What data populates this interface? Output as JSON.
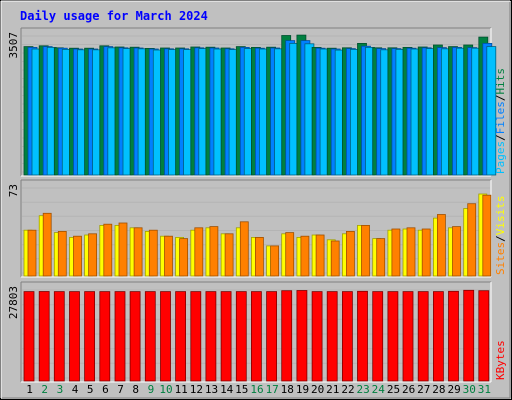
{
  "chart_data": [
    {
      "type": "bar",
      "title": "Daily usage for March 2024",
      "categories": [
        "1",
        "2",
        "3",
        "4",
        "5",
        "6",
        "7",
        "8",
        "9",
        "10",
        "11",
        "12",
        "13",
        "14",
        "15",
        "16",
        "17",
        "18",
        "19",
        "20",
        "21",
        "22",
        "23",
        "24",
        "25",
        "26",
        "27",
        "28",
        "29",
        "30",
        "31"
      ],
      "weekend_days": [
        "2",
        "3",
        "9",
        "10",
        "16",
        "17",
        "23",
        "24",
        "30",
        "31"
      ],
      "ymax_label": "3507",
      "ymax": 3507,
      "legend": [
        "Hits",
        "Files",
        "Pages"
      ],
      "series": [
        {
          "name": "Hits",
          "color": "#008040",
          "values": [
            3240,
            3260,
            3210,
            3200,
            3200,
            3260,
            3230,
            3225,
            3195,
            3205,
            3205,
            3230,
            3225,
            3205,
            3240,
            3220,
            3225,
            3520,
            3530,
            3220,
            3200,
            3210,
            3320,
            3210,
            3210,
            3220,
            3230,
            3280,
            3240,
            3280,
            3480
          ]
        },
        {
          "name": "Files",
          "color": "#0080ff",
          "values": [
            3220,
            3240,
            3200,
            3180,
            3180,
            3240,
            3210,
            3205,
            3180,
            3185,
            3185,
            3210,
            3205,
            3185,
            3220,
            3200,
            3205,
            3390,
            3390,
            3200,
            3180,
            3190,
            3250,
            3190,
            3190,
            3200,
            3210,
            3215,
            3220,
            3215,
            3320
          ]
        },
        {
          "name": "Pages",
          "color": "#00c0ff",
          "values": [
            3180,
            3220,
            3170,
            3160,
            3160,
            3210,
            3190,
            3185,
            3155,
            3165,
            3165,
            3190,
            3180,
            3165,
            3190,
            3180,
            3185,
            3320,
            3310,
            3180,
            3150,
            3170,
            3220,
            3160,
            3170,
            3180,
            3190,
            3185,
            3200,
            3200,
            3240
          ]
        }
      ]
    },
    {
      "type": "bar",
      "ymax_label": "73",
      "ymax": 73,
      "legend": [
        "Visits",
        "Sites"
      ],
      "series": [
        {
          "name": "Visits",
          "color": "#ffff00",
          "values": [
            38,
            50,
            36,
            32,
            34,
            42,
            42,
            40,
            37,
            33,
            32,
            38,
            40,
            35,
            40,
            32,
            25,
            35,
            32,
            34,
            30,
            35,
            42,
            31,
            38,
            39,
            38,
            48,
            40,
            56,
            68
          ]
        },
        {
          "name": "Sites",
          "color": "#ff8000",
          "values": [
            38,
            52,
            37,
            33,
            35,
            43,
            44,
            40,
            38,
            33,
            31,
            40,
            41,
            35,
            45,
            32,
            25,
            36,
            33,
            34,
            29,
            37,
            42,
            31,
            39,
            40,
            39,
            51,
            41,
            60,
            67
          ]
        }
      ]
    },
    {
      "type": "bar",
      "ymax_label": "27803",
      "ymax": 27803,
      "legend": [
        "KBytes"
      ],
      "series": [
        {
          "name": "KBytes",
          "color": "#ff0000",
          "values": [
            27300,
            27350,
            27300,
            27300,
            27300,
            27300,
            27300,
            27300,
            27300,
            27300,
            27300,
            27300,
            27300,
            27300,
            27300,
            27300,
            27300,
            27600,
            27650,
            27300,
            27300,
            27300,
            27400,
            27300,
            27300,
            27300,
            27300,
            27300,
            27400,
            27700,
            27600
          ]
        }
      ]
    }
  ]
}
